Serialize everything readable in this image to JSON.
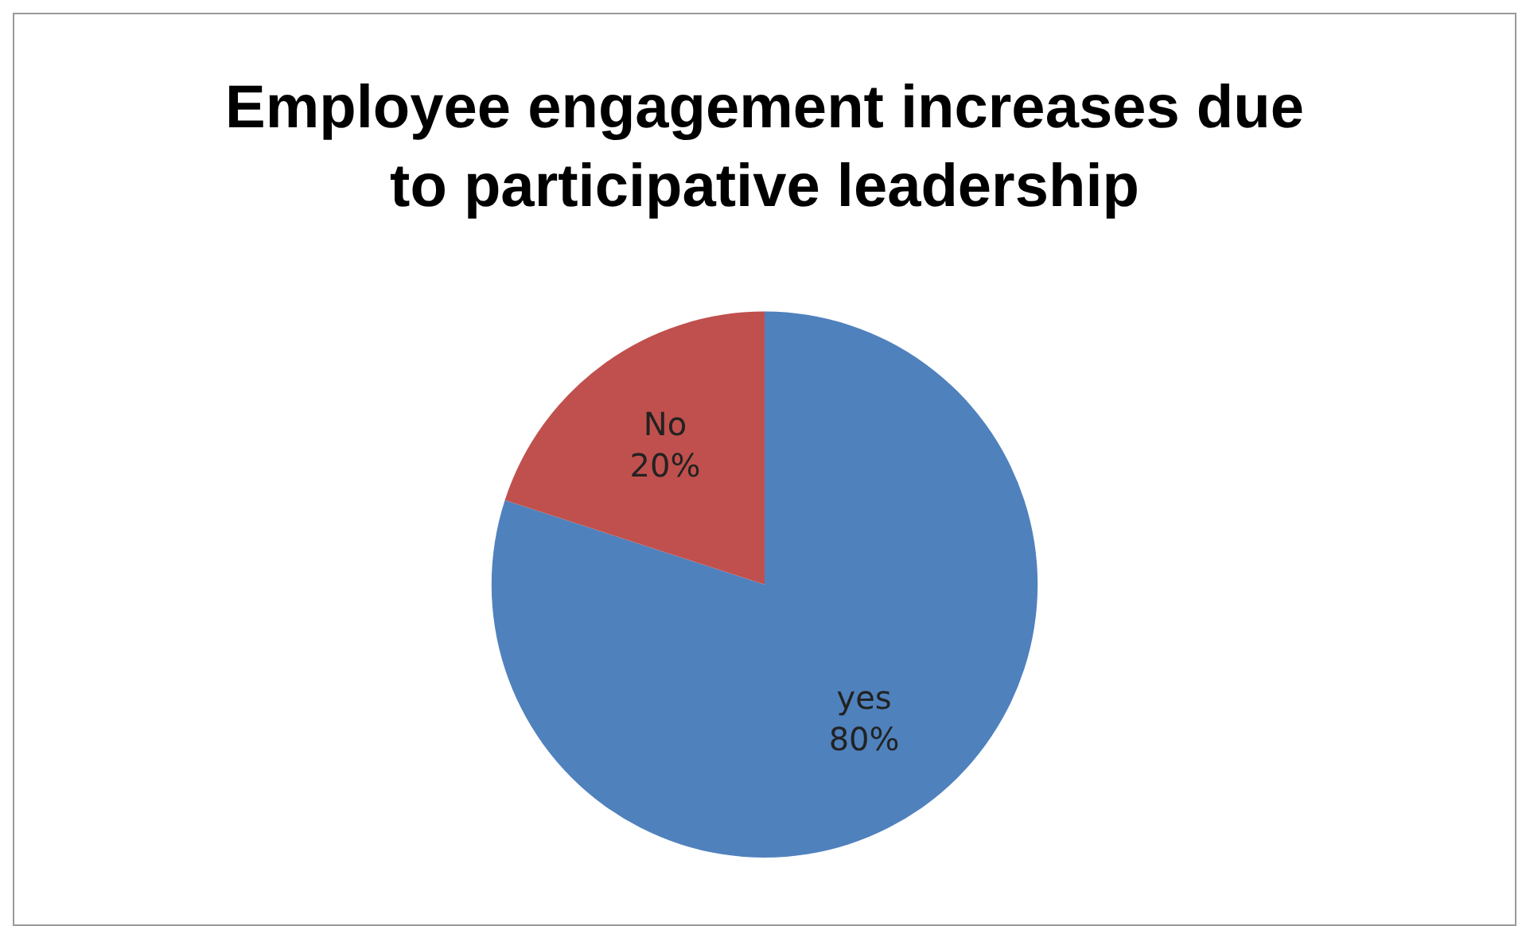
{
  "chart_data": {
    "type": "pie",
    "title": "Employee engagement increases due to participative leadership",
    "categories": [
      "yes",
      "No"
    ],
    "values": [
      80,
      20
    ],
    "colors": [
      "#4f81bd",
      "#c0504d"
    ],
    "value_labels": [
      "80%",
      "20%"
    ],
    "legend": false
  }
}
